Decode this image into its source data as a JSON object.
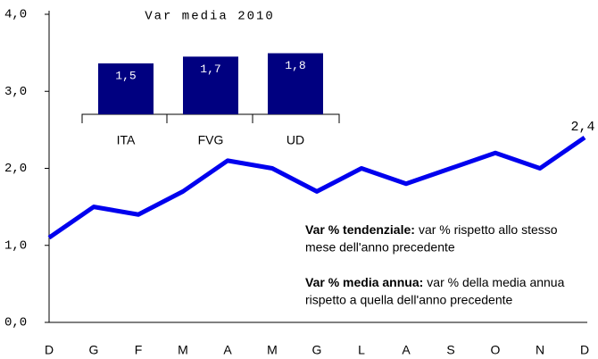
{
  "chart_data": [
    {
      "type": "line",
      "categories": [
        "D",
        "G",
        "F",
        "M",
        "A",
        "M",
        "G",
        "L",
        "A",
        "S",
        "O",
        "N",
        "D"
      ],
      "values": [
        1.1,
        1.5,
        1.4,
        1.7,
        2.1,
        2.0,
        1.7,
        2.0,
        1.8,
        2.0,
        2.2,
        2.0,
        2.4
      ],
      "value_labels": [
        null,
        null,
        null,
        null,
        null,
        null,
        null,
        null,
        null,
        null,
        null,
        null,
        "2,4"
      ],
      "color": "#0000ee",
      "ylim": [
        0,
        4
      ],
      "yticks": [
        {
          "value": 0,
          "label": "0,0"
        },
        {
          "value": 1,
          "label": "1,0"
        },
        {
          "value": 2,
          "label": "2,0"
        },
        {
          "value": 3,
          "label": "3,0"
        },
        {
          "value": 4,
          "label": "4,0"
        }
      ],
      "annotations": [
        {
          "term": "Var % tendenziale:",
          "lines": [
            "var % rispetto allo stesso",
            "mese dell'anno precedente"
          ]
        },
        {
          "term": "Var % media annua:",
          "lines": [
            "var % della media annua",
            "rispetto a quella dell'anno precedente"
          ]
        }
      ]
    },
    {
      "type": "bar",
      "title": "Var media 2010",
      "categories": [
        "ITA",
        "FVG",
        "UD"
      ],
      "values": [
        1.5,
        1.7,
        1.8
      ],
      "value_labels": [
        "1,5",
        "1,7",
        "1,8"
      ],
      "color": "#000080"
    }
  ]
}
